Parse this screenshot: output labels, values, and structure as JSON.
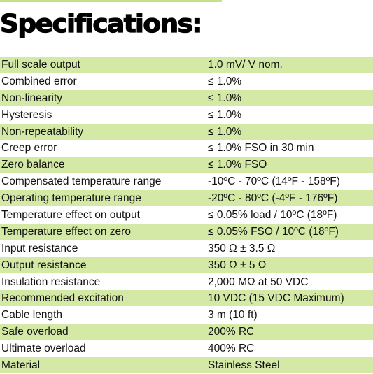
{
  "title": "Specifications:",
  "colors": {
    "band": "#d4e9a6",
    "rule": "#c7e08a",
    "text": "#111111"
  },
  "specs": [
    {
      "name": "Full scale output",
      "value": "1.0 mV/ V nom."
    },
    {
      "name": "Combined error",
      "value": "≤ 1.0%"
    },
    {
      "name": "Non-linearity",
      "value": "≤ 1.0%"
    },
    {
      "name": "Hysteresis",
      "value": "≤ 1.0%"
    },
    {
      "name": "Non-repeatability",
      "value": "≤ 1.0%"
    },
    {
      "name": "Creep error",
      "value": "≤ 1.0% FSO in 30 min"
    },
    {
      "name": "Zero balance",
      "value": "≤ 1.0% FSO"
    },
    {
      "name": "Compensated temperature range",
      "value": "-10ºC - 70ºC (14ºF - 158ºF)"
    },
    {
      "name": "Operating temperature range",
      "value": "-20ºC - 80ºC (-4ºF - 176ºF)"
    },
    {
      "name": "Temperature effect on output",
      "value": "≤ 0.05% load / 10ºC (18ºF)"
    },
    {
      "name": "Temperature effect on zero",
      "value": "≤ 0.05% FSO / 10ºC (18ºF)"
    },
    {
      "name": "Input resistance",
      "value": "350 Ω ± 3.5 Ω"
    },
    {
      "name": "Output resistance",
      "value": "350 Ω ± 5 Ω"
    },
    {
      "name": "Insulation resistance",
      "value": "2,000 MΩ at 50 VDC"
    },
    {
      "name": "Recommended excitation",
      "value": "10 VDC (15 VDC Maximum)"
    },
    {
      "name": "Cable length",
      "value": "3 m (10 ft)"
    },
    {
      "name": "Safe overload",
      "value": "200% RC"
    },
    {
      "name": "Ultimate overload",
      "value": "400% RC"
    },
    {
      "name": "Material",
      "value": "Stainless Steel"
    }
  ]
}
